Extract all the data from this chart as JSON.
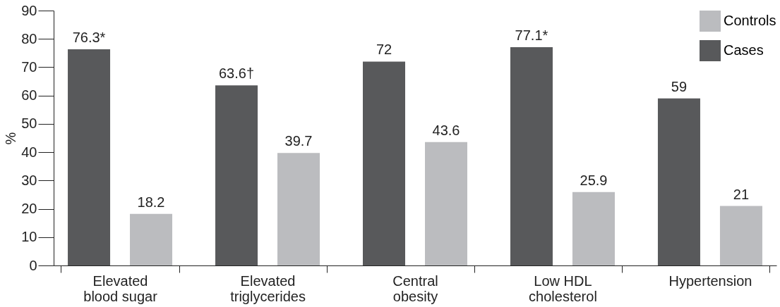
{
  "chart_data": {
    "type": "bar",
    "ylabel": "%",
    "categories": [
      "Elevated blood sugar",
      "Elevated triglycerides",
      "Central obesity",
      "Low HDL cholesterol",
      "Hypertension"
    ],
    "series": [
      {
        "name": "Controls",
        "color": "#bbbcbf",
        "values": [
          18.2,
          39.7,
          43.6,
          25.9,
          21
        ],
        "value_labels": [
          "18.2",
          "39.7",
          "43.6",
          "25.9",
          "21"
        ]
      },
      {
        "name": "Cases",
        "color": "#58595b",
        "values": [
          76.3,
          63.6,
          72,
          77.1,
          59
        ],
        "value_labels": [
          "76.3*",
          "63.6†",
          "72",
          "77.1*",
          "59"
        ]
      }
    ],
    "ylim": [
      0,
      90
    ],
    "yticks": [
      0,
      10,
      20,
      30,
      40,
      50,
      60,
      70,
      80,
      90
    ],
    "grid": false,
    "legend": "top right"
  }
}
